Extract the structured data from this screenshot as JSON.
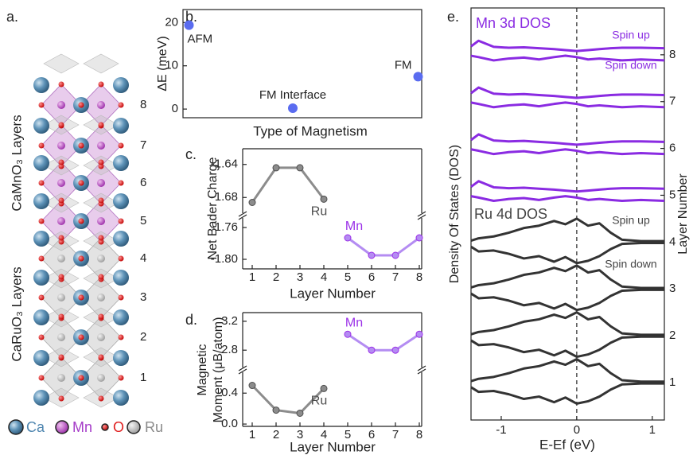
{
  "panel_a": {
    "label": "a.",
    "group_labels": [
      "CaMnO₃ Layers",
      "CaRuO₃ Layers"
    ],
    "layer_numbers": [
      "8",
      "7",
      "6",
      "5",
      "4",
      "3",
      "2",
      "1"
    ],
    "legend": [
      {
        "text": "Ca",
        "color": "#4f86b0"
      },
      {
        "text": "Mn",
        "color": "#a53cc8"
      },
      {
        "text": "O",
        "color": "#e02020"
      },
      {
        "text": "Ru",
        "color": "#8a8a8a"
      }
    ]
  },
  "chart_data": [
    {
      "label": "b.",
      "type": "scatter",
      "categories": [
        "AFM",
        "FM Interface",
        "FM"
      ],
      "values": [
        19.4,
        0.2,
        7.5
      ],
      "color": "#5a6cf0",
      "xlabel": "Type of Magnetism",
      "ylabel": "ΔE (meV)",
      "ylim": [
        -2,
        23
      ],
      "yticks": [
        0,
        10,
        20
      ]
    },
    {
      "label": "c.",
      "type": "line",
      "xlabel": "Layer Number",
      "ylabel": "Net Bader Charge",
      "xlim": [
        0.6,
        8.1
      ],
      "xticks": [
        1,
        2,
        3,
        4,
        5,
        6,
        7,
        8
      ],
      "ylim": [
        [
          -1.699,
          -1.621
        ],
        [
          -1.812,
          -1.748
        ]
      ],
      "yticks": [
        [
          -1.64,
          -1.68
        ],
        [
          -1.76,
          {
            "value": -1.8,
            "label": "-1.80"
          }
        ]
      ],
      "series": [
        {
          "name": "Ru",
          "color": "#4d4d4d",
          "line_color": "#8c8c8c",
          "x": [
            1,
            2,
            3,
            4
          ],
          "values": [
            -1.686,
            -1.644,
            -1.644,
            -1.682
          ]
        },
        {
          "name": "Mn",
          "color": "#9b30e8",
          "line_color": "#b48cf2",
          "x": [
            5,
            6,
            7,
            8
          ],
          "values": [
            -1.773,
            -1.795,
            -1.795,
            -1.773
          ]
        }
      ]
    },
    {
      "label": "d.",
      "type": "line",
      "xlabel": "Layer Number",
      "ylabel": [
        "Magnetic",
        "Moment (μB/atom)"
      ],
      "xlim": [
        0.6,
        8.1
      ],
      "xticks": [
        1,
        2,
        3,
        4,
        5,
        6,
        7,
        8
      ],
      "ylim": [
        [
          2.56,
          3.32
        ],
        [
          -0.03,
          0.67
        ]
      ],
      "yticks": [
        [
          3.2,
          2.8
        ],
        [
          0.4,
          {
            "value": 0,
            "label": "0.0"
          }
        ]
      ],
      "series": [
        {
          "name": "Ru",
          "color": "#4d4d4d",
          "line_color": "#8c8c8c",
          "x": [
            1,
            2,
            3,
            4
          ],
          "values": [
            0.5,
            0.18,
            0.14,
            0.46
          ]
        },
        {
          "name": "Mn",
          "color": "#9b30e8",
          "line_color": "#b48cf2",
          "x": [
            5,
            6,
            7,
            8
          ],
          "values": [
            3.02,
            2.8,
            2.8,
            3.02
          ]
        }
      ]
    },
    {
      "label": "e.",
      "type": "dos",
      "xlabel": "E-Ef (eV)",
      "ylabel": "Density Of States (DOS)",
      "y2label": "Layer Number",
      "xlim": [
        -1.4,
        1.16
      ],
      "xticks": [
        -1,
        0,
        1
      ],
      "ylim": [
        0.2,
        9.0
      ],
      "y2ticks": [
        1,
        2,
        3,
        4,
        5,
        6,
        7,
        8
      ],
      "fermi_level": 0,
      "annotations": [
        "Mn 3d DOS",
        "Spin up",
        "Spin down",
        "Ru 4d DOS",
        "Spin up",
        "Spin down"
      ],
      "x": [
        -1.4,
        -1.3,
        -1.1,
        -0.9,
        -0.7,
        -0.5,
        -0.3,
        -0.15,
        0,
        0.15,
        0.3,
        0.45,
        0.6,
        0.85,
        1.16
      ],
      "series": [
        {
          "color": "#8a2be2",
          "values": [
            8.18,
            8.3,
            8.17,
            8.15,
            8.16,
            8.14,
            8.12,
            8.1,
            8.08,
            8.1,
            8.12,
            8.14,
            8.15,
            8.15,
            8.14
          ]
        },
        {
          "color": "#8a2be2",
          "values": [
            7.98,
            7.95,
            7.88,
            7.92,
            7.94,
            7.9,
            7.95,
            7.98,
            7.95,
            7.9,
            7.92,
            7.9,
            7.88,
            7.9,
            7.88
          ]
        },
        {
          "color": "#8a2be2",
          "values": [
            7.18,
            7.3,
            7.17,
            7.15,
            7.16,
            7.14,
            7.12,
            7.1,
            7.08,
            7.1,
            7.12,
            7.14,
            7.15,
            7.15,
            7.14
          ]
        },
        {
          "color": "#8a2be2",
          "values": [
            6.98,
            6.95,
            6.88,
            6.92,
            6.94,
            6.9,
            6.95,
            6.98,
            6.95,
            6.9,
            6.92,
            6.9,
            6.88,
            6.9,
            6.88
          ]
        },
        {
          "color": "#8a2be2",
          "values": [
            6.18,
            6.3,
            6.17,
            6.15,
            6.16,
            6.14,
            6.12,
            6.1,
            6.08,
            6.1,
            6.12,
            6.14,
            6.15,
            6.15,
            6.14
          ]
        },
        {
          "color": "#8a2be2",
          "values": [
            5.98,
            5.95,
            5.88,
            5.92,
            5.94,
            5.9,
            5.95,
            5.98,
            5.95,
            5.9,
            5.92,
            5.9,
            5.88,
            5.9,
            5.88
          ]
        },
        {
          "color": "#8a2be2",
          "values": [
            5.18,
            5.3,
            5.17,
            5.15,
            5.16,
            5.14,
            5.12,
            5.1,
            5.08,
            5.1,
            5.12,
            5.14,
            5.15,
            5.15,
            5.14
          ]
        },
        {
          "color": "#8a2be2",
          "values": [
            4.98,
            4.95,
            4.88,
            4.92,
            4.94,
            4.9,
            4.95,
            4.98,
            4.95,
            4.9,
            4.92,
            4.9,
            4.88,
            4.9,
            4.88
          ]
        },
        {
          "color": "#333333",
          "values": [
            4.03,
            4.08,
            4.12,
            4.2,
            4.3,
            4.35,
            4.45,
            4.38,
            4.5,
            4.35,
            4.4,
            4.2,
            4.05,
            4.02,
            4.02
          ]
        },
        {
          "color": "#333333",
          "values": [
            3.9,
            3.8,
            3.82,
            3.75,
            3.65,
            3.7,
            3.58,
            3.68,
            3.55,
            3.6,
            3.7,
            3.85,
            3.96,
            3.98,
            3.98
          ]
        },
        {
          "color": "#333333",
          "values": [
            3.03,
            3.08,
            3.12,
            3.2,
            3.3,
            3.35,
            3.45,
            3.38,
            3.5,
            3.35,
            3.4,
            3.2,
            3.05,
            3.02,
            3.02
          ]
        },
        {
          "color": "#333333",
          "values": [
            2.9,
            2.8,
            2.82,
            2.75,
            2.65,
            2.7,
            2.58,
            2.68,
            2.55,
            2.6,
            2.7,
            2.85,
            2.96,
            2.98,
            2.98
          ]
        },
        {
          "color": "#333333",
          "values": [
            2.03,
            2.08,
            2.12,
            2.2,
            2.3,
            2.35,
            2.45,
            2.38,
            2.5,
            2.35,
            2.4,
            2.2,
            2.05,
            2.02,
            2.02
          ]
        },
        {
          "color": "#333333",
          "values": [
            1.9,
            1.8,
            1.82,
            1.75,
            1.65,
            1.7,
            1.58,
            1.68,
            1.55,
            1.6,
            1.7,
            1.85,
            1.96,
            1.98,
            1.98
          ]
        },
        {
          "color": "#333333",
          "values": [
            1.03,
            1.08,
            1.12,
            1.2,
            1.3,
            1.35,
            1.45,
            1.38,
            1.5,
            1.35,
            1.4,
            1.2,
            1.05,
            1.02,
            1.02
          ]
        },
        {
          "color": "#333333",
          "values": [
            0.9,
            0.8,
            0.82,
            0.75,
            0.65,
            0.7,
            0.58,
            0.68,
            0.55,
            0.6,
            0.7,
            0.85,
            0.96,
            0.98,
            0.98
          ]
        }
      ]
    }
  ]
}
